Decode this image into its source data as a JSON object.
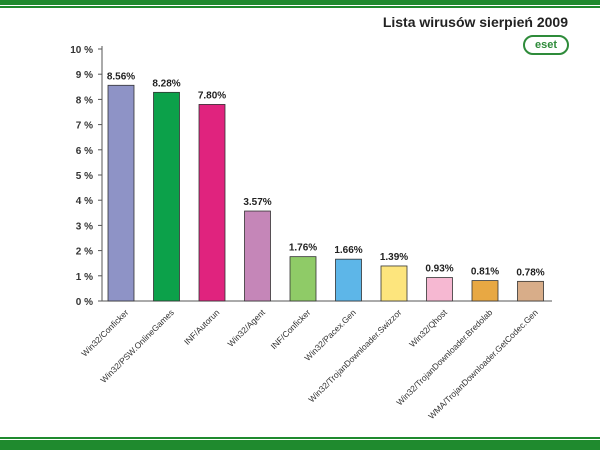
{
  "header": {
    "title": "Lista wirusów sierpień 2009",
    "logo_text": "eset"
  },
  "colors": {
    "stripe_green": "#1f8a2e",
    "logo_green": "#2e8b3a"
  },
  "chart_data": {
    "type": "bar",
    "title": "Lista wirusów sierpień 2009",
    "xlabel": "",
    "ylabel": "",
    "ylim": [
      0,
      10
    ],
    "yticks": [
      "0 %",
      "1 %",
      "2 %",
      "3 %",
      "4 %",
      "5 %",
      "6 %",
      "7 %",
      "8 %",
      "9 %",
      "10 %"
    ],
    "categories": [
      "Win32/Conficker",
      "Win32/PSW.OnlineGames",
      "INF/Autorun",
      "Win32/Agent",
      "INF/Conficker",
      "Win32/Pacex.Gen",
      "Win32/TrojanDownloader.Swizzor",
      "Win32/Qhost",
      "Win32/TrojanDownloader.Bredolab",
      "WMA/TrojanDownloader.GetCodec.Gen"
    ],
    "values": [
      8.56,
      8.28,
      7.8,
      3.57,
      1.76,
      1.66,
      1.39,
      0.93,
      0.81,
      0.78
    ],
    "value_labels": [
      "8.56%",
      "8.28%",
      "7.80%",
      "3.57%",
      "1.76%",
      "1.66%",
      "1.39%",
      "0.93%",
      "0.81%",
      "0.78%"
    ],
    "bar_colors": [
      "#8e93c6",
      "#0ca14a",
      "#e0237e",
      "#c586b8",
      "#8fcb67",
      "#5db6e8",
      "#fde57d",
      "#f6b8d2",
      "#e8a843",
      "#d8ad89"
    ],
    "grid": false,
    "legend": "none"
  }
}
